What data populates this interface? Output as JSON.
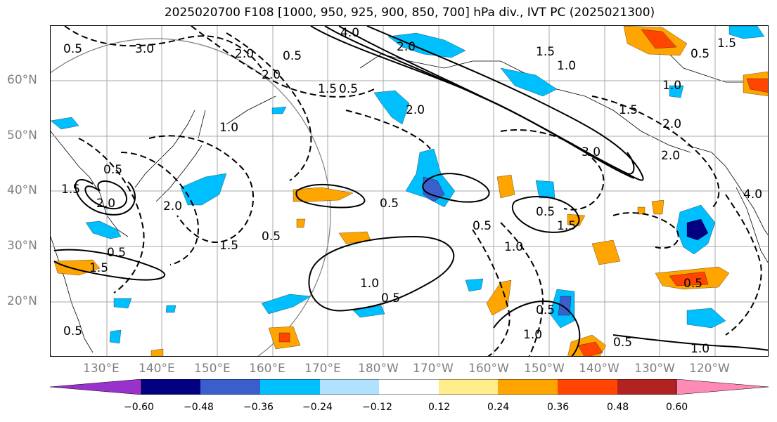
{
  "title": "2025020700 F108 [1000, 950, 925, 900, 850, 700] hPa div., IVT PC (2025021300)",
  "lat_labels": [
    "60°N",
    "50°N",
    "40°N",
    "30°N",
    "20°N"
  ],
  "lon_labels": [
    "130°E",
    "140°E",
    "150°E",
    "160°E",
    "170°E",
    "180°W",
    "170°W",
    "160°W",
    "150°W",
    "140°W",
    "130°W",
    "120°W"
  ],
  "colorbar": {
    "ticks": [
      "−0.60",
      "−0.48",
      "−0.36",
      "−0.24",
      "−0.12",
      "0.12",
      "0.24",
      "0.36",
      "0.48",
      "0.60"
    ],
    "colors": [
      "#9932CC",
      "#000080",
      "#3A5FCD",
      "#00BFFF",
      "#B0E2FF",
      "#FFFFFF",
      "#FFEC8B",
      "#FFA500",
      "#FF4500",
      "#B22222",
      "#FF8AB6"
    ]
  },
  "contour_labels": [
    "0.5",
    "3.0",
    "2.0",
    "0.5",
    "4.0",
    "1.5",
    "1.0",
    "0.5",
    "1.5",
    "2.0",
    "1.0",
    "2.0",
    "0.5",
    "2.0",
    "1.5",
    "2.0",
    "2.0",
    "1.5",
    "0.5",
    "0.5",
    "0.5",
    "1.5",
    "1.0",
    "0.5",
    "0.5",
    "1.5",
    "0.5",
    "2.0",
    "1.0",
    "0.5",
    "0.5",
    "3.0",
    "1.5",
    "2.0",
    "1.5",
    "1.0",
    "0.5",
    "1.0",
    "0.5",
    "1.0",
    "4.0",
    "0.5"
  ]
}
